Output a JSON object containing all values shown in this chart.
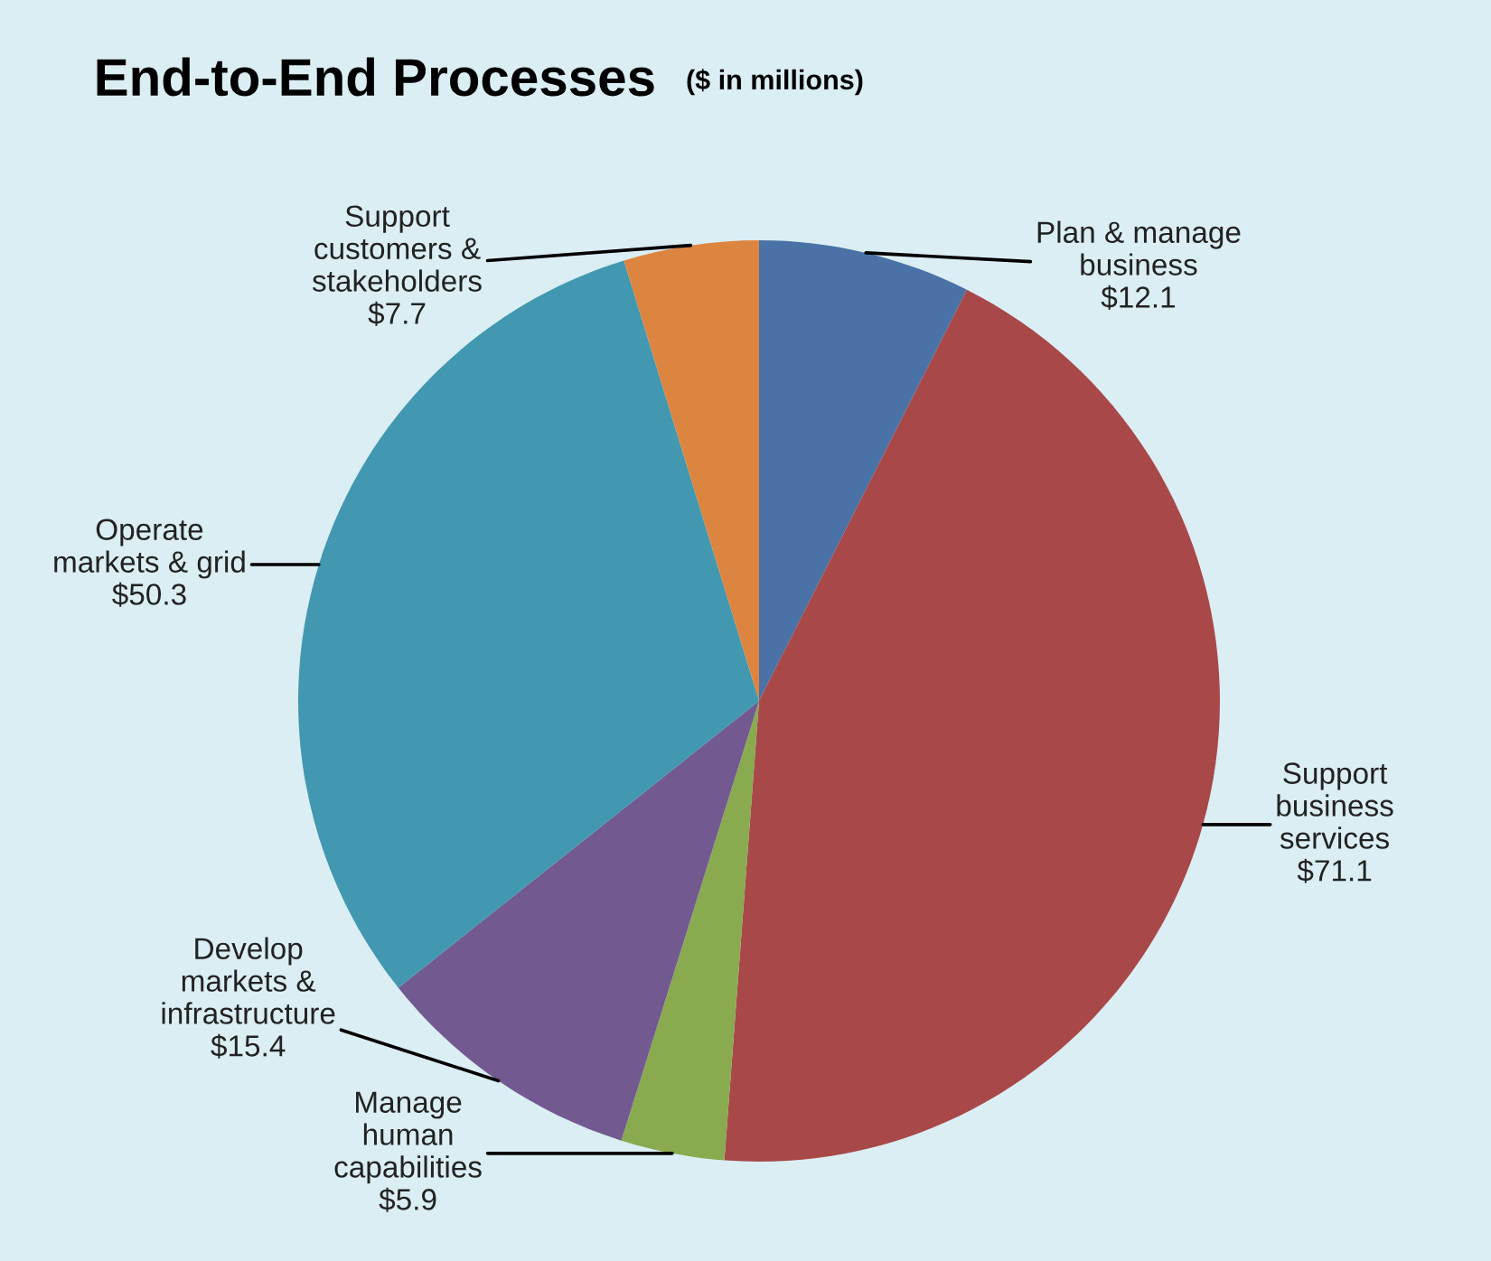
{
  "chart_data": {
    "type": "pie",
    "title": "End-to-End Processes",
    "subtitle": "($ in millions)",
    "categories": [
      "Plan & manage\nbusiness",
      "Support\nbusiness\nservices",
      "Manage\nhuman\ncapabilities",
      "Develop\nmarkets &\ninfrastructure",
      "Operate\nmarkets & grid",
      "Support\ncustomers &\nstakeholders"
    ],
    "values": [
      12.1,
      71.1,
      5.9,
      15.4,
      50.3,
      7.7
    ],
    "value_labels": [
      "$12.1",
      "$71.1",
      "$5.9",
      "$15.4",
      "$50.3",
      "$7.7"
    ],
    "colors": [
      "#4a72a6",
      "#a84848",
      "#8aaa50",
      "#725a90",
      "#4298b0",
      "#dc8540"
    ],
    "legend": false
  }
}
